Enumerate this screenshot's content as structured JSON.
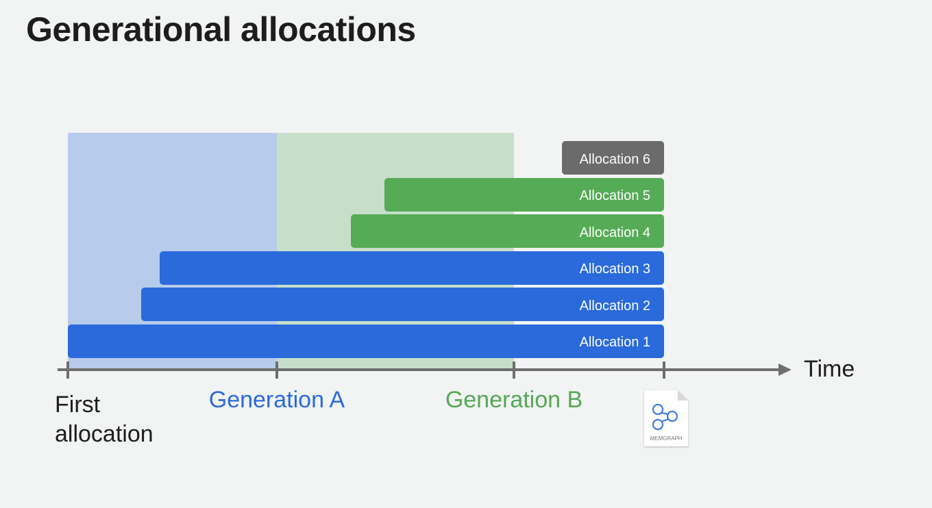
{
  "title": "Generational allocations",
  "axis": {
    "label": "Time",
    "first_label_line1": "First",
    "first_label_line2": "allocation"
  },
  "generations": [
    {
      "label": "Generation A",
      "color": "#2a6adb",
      "region_color": "#b7cbeb"
    },
    {
      "label": "Generation B",
      "color": "#52a956",
      "region_color": "#c7dfc8"
    }
  ],
  "allocations": [
    {
      "label": "Allocation 6",
      "color": "#6b6b6b"
    },
    {
      "label": "Allocation 5",
      "color": "#56ab56"
    },
    {
      "label": "Allocation 4",
      "color": "#56ab56"
    },
    {
      "label": "Allocation 3",
      "color": "#2a6adb"
    },
    {
      "label": "Allocation 2",
      "color": "#2a6adb"
    },
    {
      "label": "Allocation 1",
      "color": "#2a6adb"
    }
  ],
  "memgraph": {
    "label": "MEMGRAPH",
    "icon": "memgraph-file-icon"
  }
}
